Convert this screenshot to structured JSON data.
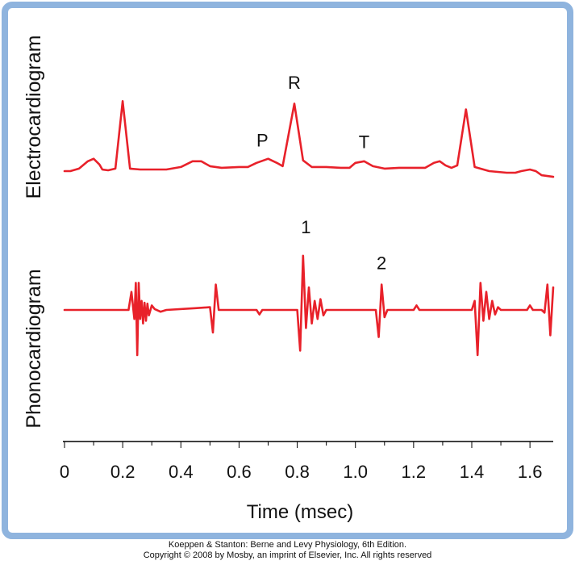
{
  "chart_data": {
    "type": "line",
    "title": "",
    "xlabel": "Time (msec)",
    "xlim": [
      0,
      1.68
    ],
    "xticks": [
      0,
      0.2,
      0.4,
      0.6,
      0.8,
      1.0,
      1.2,
      1.4,
      1.6
    ],
    "xtick_labels": [
      "0",
      "0.2",
      "0.4",
      "0.6",
      "0.8",
      "1.0",
      "1.2",
      "1.4",
      "1.6"
    ],
    "grid": false,
    "line_color": "#e8212a",
    "frame_color": "#8fb4de",
    "rows": [
      {
        "label": "Electrocardiogram",
        "points": [
          [
            0,
            0
          ],
          [
            0.02,
            0
          ],
          [
            0.05,
            0.03
          ],
          [
            0.08,
            0.12
          ],
          [
            0.1,
            0.15
          ],
          [
            0.12,
            0.08
          ],
          [
            0.13,
            0.02
          ],
          [
            0.15,
            0.01
          ],
          [
            0.175,
            0.03
          ],
          [
            0.2,
            0.85
          ],
          [
            0.225,
            0.03
          ],
          [
            0.26,
            0.02
          ],
          [
            0.3,
            0.02
          ],
          [
            0.35,
            0.02
          ],
          [
            0.4,
            0.05
          ],
          [
            0.44,
            0.12
          ],
          [
            0.47,
            0.12
          ],
          [
            0.5,
            0.06
          ],
          [
            0.54,
            0.04
          ],
          [
            0.6,
            0.05
          ],
          [
            0.63,
            0.05
          ],
          [
            0.66,
            0.1
          ],
          [
            0.7,
            0.15
          ],
          [
            0.73,
            0.1
          ],
          [
            0.75,
            0.06
          ],
          [
            0.79,
            0.82
          ],
          [
            0.82,
            0.13
          ],
          [
            0.85,
            0.05
          ],
          [
            0.9,
            0.05
          ],
          [
            0.95,
            0.04
          ],
          [
            0.98,
            0.04
          ],
          [
            1.0,
            0.1
          ],
          [
            1.03,
            0.12
          ],
          [
            1.06,
            0.06
          ],
          [
            1.1,
            0.03
          ],
          [
            1.15,
            0.04
          ],
          [
            1.2,
            0.04
          ],
          [
            1.24,
            0.04
          ],
          [
            1.27,
            0.1
          ],
          [
            1.29,
            0.12
          ],
          [
            1.31,
            0.07
          ],
          [
            1.33,
            0.04
          ],
          [
            1.35,
            0.07
          ],
          [
            1.38,
            0.75
          ],
          [
            1.41,
            0.05
          ],
          [
            1.46,
            0.0
          ],
          [
            1.52,
            -0.02
          ],
          [
            1.55,
            -0.02
          ],
          [
            1.57,
            0.0
          ],
          [
            1.6,
            0.02
          ],
          [
            1.62,
            0.0
          ],
          [
            1.64,
            -0.05
          ],
          [
            1.68,
            -0.07
          ]
        ]
      },
      {
        "label": "Phonocardiogram",
        "points": [
          [
            0,
            0
          ],
          [
            0.22,
            0
          ],
          [
            0.23,
            0.2
          ],
          [
            0.24,
            -0.1
          ],
          [
            0.245,
            0.3
          ],
          [
            0.25,
            -0.5
          ],
          [
            0.255,
            0.3
          ],
          [
            0.26,
            -0.1
          ],
          [
            0.265,
            0.1
          ],
          [
            0.27,
            -0.15
          ],
          [
            0.275,
            0.08
          ],
          [
            0.28,
            -0.12
          ],
          [
            0.285,
            0.07
          ],
          [
            0.29,
            -0.06
          ],
          [
            0.3,
            0.05
          ],
          [
            0.31,
            0.01
          ],
          [
            0.33,
            -0.02
          ],
          [
            0.35,
            0
          ],
          [
            0.45,
            0.02
          ],
          [
            0.5,
            0.03
          ],
          [
            0.51,
            -0.25
          ],
          [
            0.52,
            0.28
          ],
          [
            0.53,
            0
          ],
          [
            0.66,
            0
          ],
          [
            0.67,
            -0.05
          ],
          [
            0.68,
            0
          ],
          [
            0.8,
            0
          ],
          [
            0.81,
            -0.45
          ],
          [
            0.82,
            0.6
          ],
          [
            0.83,
            -0.2
          ],
          [
            0.84,
            0.25
          ],
          [
            0.85,
            -0.15
          ],
          [
            0.86,
            0.1
          ],
          [
            0.87,
            -0.1
          ],
          [
            0.88,
            0.12
          ],
          [
            0.89,
            -0.06
          ],
          [
            0.9,
            0
          ],
          [
            1.07,
            0
          ],
          [
            1.08,
            -0.3
          ],
          [
            1.09,
            0.28
          ],
          [
            1.1,
            -0.08
          ],
          [
            1.11,
            0
          ],
          [
            1.2,
            0
          ],
          [
            1.21,
            0.05
          ],
          [
            1.22,
            0
          ],
          [
            1.4,
            0
          ],
          [
            1.41,
            0.1
          ],
          [
            1.42,
            -0.5
          ],
          [
            1.43,
            0.3
          ],
          [
            1.44,
            -0.12
          ],
          [
            1.45,
            0.2
          ],
          [
            1.46,
            -0.1
          ],
          [
            1.47,
            0.1
          ],
          [
            1.48,
            -0.05
          ],
          [
            1.49,
            0.03
          ],
          [
            1.5,
            0
          ],
          [
            1.59,
            0
          ],
          [
            1.6,
            0.05
          ],
          [
            1.61,
            0
          ],
          [
            1.64,
            0
          ],
          [
            1.65,
            -0.03
          ],
          [
            1.66,
            0.28
          ],
          [
            1.67,
            -0.28
          ],
          [
            1.68,
            0.25
          ]
        ]
      }
    ],
    "annotations": [
      {
        "text": "P",
        "row": 0,
        "x": 0.68,
        "y": 0.3
      },
      {
        "text": "R",
        "row": 0,
        "x": 0.79,
        "y": 1.0
      },
      {
        "text": "T",
        "row": 0,
        "x": 1.03,
        "y": 0.28
      },
      {
        "text": "1",
        "row": 1,
        "x": 0.83,
        "y": 0.85
      },
      {
        "text": "2",
        "row": 1,
        "x": 1.09,
        "y": 0.45
      }
    ]
  },
  "credit": {
    "line1": "Koeppen & Stanton: Berne and Levy Physiology, 6th Edition.",
    "line2": "Copyright © 2008 by Mosby, an imprint of Elsevier, Inc. All rights reserved"
  }
}
